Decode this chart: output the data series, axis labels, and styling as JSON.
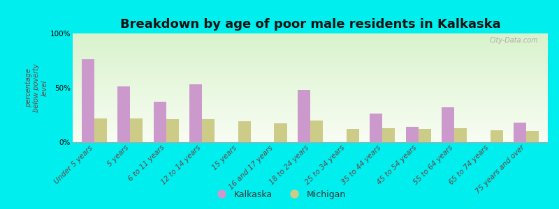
{
  "title": "Breakdown by age of poor male residents in Kalkaska",
  "ylabel": "percentage\nbelow poverty\nlevel",
  "categories": [
    "Under 5 years",
    "5 years",
    "6 to 11 years",
    "12 to 14 years",
    "15 years",
    "16 and 17 years",
    "18 to 24 years",
    "25 to 34 years",
    "35 to 44 years",
    "45 to 54 years",
    "55 to 64 years",
    "65 to 74 years",
    "75 years and over"
  ],
  "kalkaska_values": [
    76,
    51,
    37,
    53,
    0,
    0,
    48,
    0,
    26,
    14,
    32,
    0,
    18
  ],
  "michigan_values": [
    22,
    22,
    21,
    21,
    19,
    17,
    20,
    12,
    13,
    12,
    13,
    11,
    10
  ],
  "kalkaska_color": "#cc99cc",
  "michigan_color": "#cccc88",
  "bg_top_color": "#dcebd0",
  "bg_bottom_color": "#f8fdf4",
  "outer_bg": "#00eeee",
  "yticks": [
    0,
    50,
    100
  ],
  "ytick_labels": [
    "0%",
    "50%",
    "100%"
  ],
  "bar_width": 0.35,
  "title_fontsize": 13,
  "axis_fontsize": 7.5,
  "legend_fontsize": 9,
  "watermark": "City-Data.com"
}
